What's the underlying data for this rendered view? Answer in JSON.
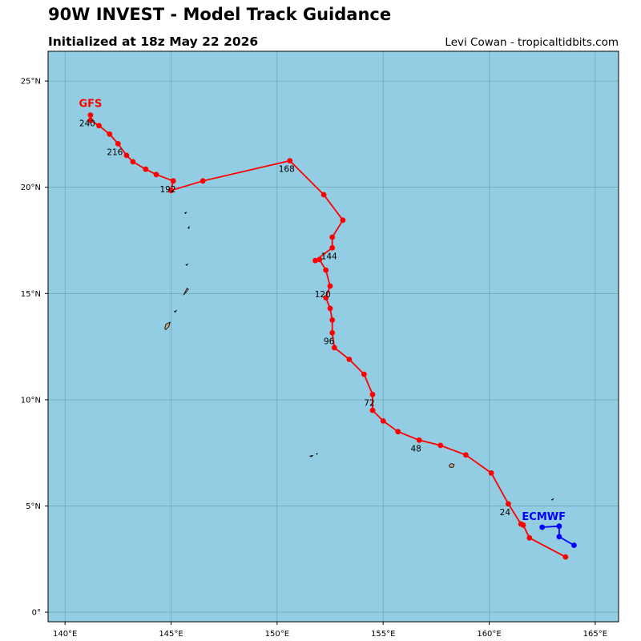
{
  "header": {
    "title": "90W INVEST - Model Track Guidance",
    "subtitle": "Initialized at 18z May 22 2026",
    "credit": "Levi Cowan - tropicaltidbits.com"
  },
  "colors": {
    "ocean": "#93cde3",
    "grid": "#5a8a96",
    "land": "#c9a27a",
    "gfs": "#ff0000",
    "ecmwf": "#0000ff"
  },
  "axes": {
    "x_ticks": [
      {
        "value": 140,
        "label": "140°E"
      },
      {
        "value": 145,
        "label": "145°E"
      },
      {
        "value": 150,
        "label": "150°E"
      },
      {
        "value": 155,
        "label": "155°E"
      },
      {
        "value": 160,
        "label": "160°E"
      },
      {
        "value": 165,
        "label": "165°E"
      }
    ],
    "y_ticks": [
      {
        "value": 0,
        "label": "0°"
      },
      {
        "value": 5,
        "label": "5°N"
      },
      {
        "value": 10,
        "label": "10°N"
      },
      {
        "value": 15,
        "label": "15°N"
      },
      {
        "value": 20,
        "label": "20°N"
      },
      {
        "value": 25,
        "label": "25°N"
      }
    ],
    "xlim": [
      139.2,
      166.1
    ],
    "ylim": [
      -0.45,
      26.4
    ],
    "grid": true
  },
  "chart_data": {
    "type": "line",
    "title": "90W INVEST - Model Track Guidance",
    "xlabel": "",
    "ylabel": "",
    "series": [
      {
        "name": "GFS",
        "color": "#ff0000",
        "points": [
          [
            163.6,
            2.6
          ],
          [
            161.9,
            3.5
          ],
          [
            161.6,
            4.1
          ],
          [
            161.5,
            4.15
          ],
          [
            160.9,
            5.1
          ],
          [
            160.1,
            6.55
          ],
          [
            158.9,
            7.4
          ],
          [
            157.7,
            7.85
          ],
          [
            156.7,
            8.1
          ],
          [
            155.7,
            8.5
          ],
          [
            155.0,
            9.0
          ],
          [
            154.5,
            9.5
          ],
          [
            154.5,
            10.25
          ],
          [
            154.1,
            11.2
          ],
          [
            153.4,
            11.9
          ],
          [
            152.7,
            12.45
          ],
          [
            152.6,
            13.15
          ],
          [
            152.6,
            13.75
          ],
          [
            152.5,
            14.3
          ],
          [
            152.3,
            14.8
          ],
          [
            152.5,
            15.35
          ],
          [
            152.3,
            16.1
          ],
          [
            152.0,
            16.6
          ],
          [
            151.8,
            16.55
          ],
          [
            152.6,
            17.15
          ],
          [
            152.6,
            17.65
          ],
          [
            153.1,
            18.45
          ],
          [
            152.2,
            19.65
          ],
          [
            150.6,
            21.25
          ],
          [
            146.5,
            20.3
          ],
          [
            145.0,
            19.85
          ],
          [
            145.1,
            20.3
          ],
          [
            144.3,
            20.6
          ],
          [
            143.8,
            20.85
          ],
          [
            143.2,
            21.2
          ],
          [
            142.9,
            21.5
          ],
          [
            142.5,
            22.05
          ],
          [
            142.1,
            22.5
          ],
          [
            141.6,
            22.9
          ],
          [
            141.2,
            23.15
          ],
          [
            141.2,
            23.4
          ]
        ],
        "labels": [
          {
            "text": "24",
            "lon": 160.9,
            "lat": 5.1
          },
          {
            "text": "48",
            "lon": 156.7,
            "lat": 8.1
          },
          {
            "text": "72",
            "lon": 154.5,
            "lat": 10.25
          },
          {
            "text": "96",
            "lon": 152.6,
            "lat": 13.15
          },
          {
            "text": "120",
            "lon": 152.3,
            "lat": 15.35
          },
          {
            "text": "144",
            "lon": 152.6,
            "lat": 17.15
          },
          {
            "text": "168",
            "lon": 150.6,
            "lat": 21.25
          },
          {
            "text": "192",
            "lon": 145.0,
            "lat": 20.3
          },
          {
            "text": "216",
            "lon": 142.5,
            "lat": 22.05
          },
          {
            "text": "240",
            "lon": 141.2,
            "lat": 23.4
          }
        ]
      },
      {
        "name": "ECMWF",
        "color": "#0000ff",
        "points": [
          [
            164.0,
            3.15
          ],
          [
            163.3,
            3.55
          ],
          [
            163.3,
            4.05
          ],
          [
            162.5,
            4.0
          ]
        ],
        "labels": []
      }
    ],
    "islands": [
      [
        [
          144.7,
          13.35
        ],
        [
          144.75,
          13.55
        ],
        [
          144.95,
          13.65
        ],
        [
          144.9,
          13.45
        ],
        [
          144.75,
          13.3
        ]
      ],
      [
        [
          145.15,
          14.15
        ],
        [
          145.25,
          14.2
        ],
        [
          145.2,
          14.12
        ]
      ],
      [
        [
          145.6,
          14.95
        ],
        [
          145.68,
          15.1
        ],
        [
          145.75,
          15.25
        ],
        [
          145.82,
          15.2
        ],
        [
          145.65,
          14.98
        ]
      ],
      [
        [
          145.7,
          16.35
        ],
        [
          145.78,
          16.38
        ],
        [
          145.74,
          16.32
        ]
      ],
      [
        [
          145.8,
          18.08
        ],
        [
          145.86,
          18.16
        ],
        [
          145.84,
          18.06
        ]
      ],
      [
        [
          145.65,
          18.8
        ],
        [
          145.72,
          18.82
        ],
        [
          145.68,
          18.76
        ]
      ],
      [
        [
          158.1,
          6.9
        ],
        [
          158.2,
          7.0
        ],
        [
          158.35,
          6.95
        ],
        [
          158.3,
          6.82
        ],
        [
          158.15,
          6.82
        ]
      ],
      [
        [
          151.55,
          7.35
        ],
        [
          151.68,
          7.38
        ],
        [
          151.62,
          7.32
        ]
      ],
      [
        [
          151.85,
          7.45
        ],
        [
          151.9,
          7.47
        ],
        [
          151.88,
          7.43
        ]
      ],
      [
        [
          162.95,
          5.3
        ],
        [
          163.02,
          5.33
        ],
        [
          162.98,
          5.27
        ]
      ]
    ]
  }
}
